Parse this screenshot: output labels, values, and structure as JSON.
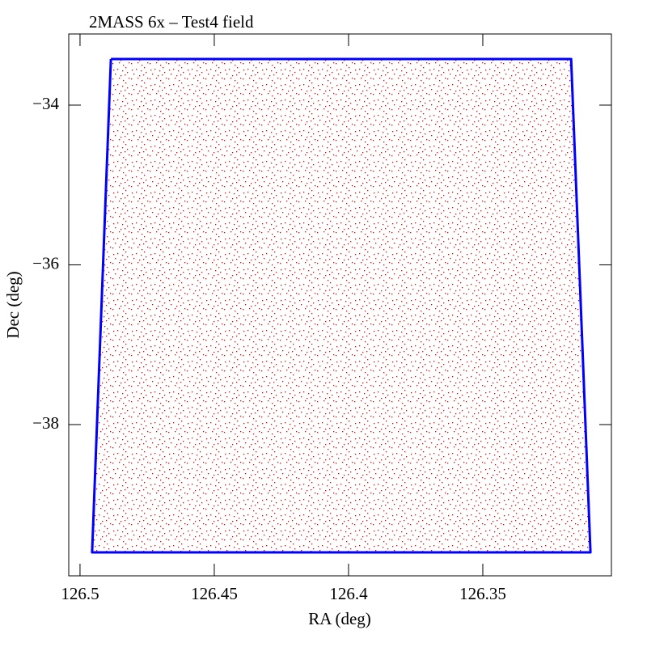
{
  "chart_data": {
    "type": "line",
    "title": "2MASS 6x – Test4 field",
    "x_label": "RA (deg)",
    "y_label": "Dec (deg)",
    "series": [
      {
        "color": "#0000ff",
        "x": [
          126.4885,
          126.3171,
          126.3099,
          126.4955,
          126.4885
        ],
        "values": [
          -33.423,
          -33.423,
          -39.6,
          -39.6,
          -33.423
        ]
      }
    ],
    "point_color": "#ff0000",
    "xlim": [
      126.5042,
      126.3021
    ],
    "ylim": [
      -39.894,
      -33.109
    ],
    "xticks": [
      126.5,
      126.45,
      126.4,
      126.35
    ],
    "yticks": [
      {
        "value": -34,
        "label": "−34"
      },
      {
        "value": -36,
        "label": "−36"
      },
      {
        "value": -38,
        "label": "−38"
      }
    ],
    "grid": false
  }
}
